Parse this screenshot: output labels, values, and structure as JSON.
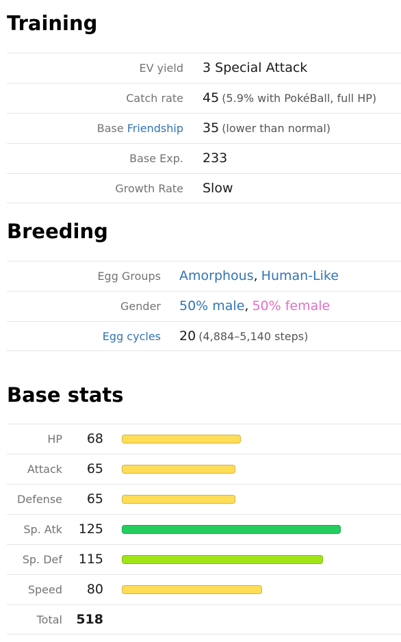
{
  "training": {
    "title": "Training",
    "rows": [
      {
        "label": "EV yield",
        "value": "3 Special Attack"
      },
      {
        "label": "Catch rate",
        "value": "45",
        "note": "(5.9% with PokéBall, full HP)"
      },
      {
        "label": "Base",
        "label_link": "Friendship",
        "value": "35",
        "note": "(lower than normal)"
      },
      {
        "label": "Base Exp.",
        "value": "233"
      },
      {
        "label": "Growth Rate",
        "value": "Slow"
      }
    ]
  },
  "breeding": {
    "title": "Breeding",
    "rows": [
      {
        "label": "Egg Groups",
        "items": [
          "Amorphous",
          "Human-Like"
        ],
        "item_colors": [
          "#3273b5",
          "#3273b5"
        ],
        "separator": ","
      },
      {
        "label": "Gender",
        "items": [
          "50% male",
          "50% female"
        ],
        "item_colors": [
          "#3273b5",
          "#e36fc4"
        ],
        "separator": ","
      },
      {
        "label_link": "Egg cycles",
        "value": "20",
        "note": "(4,884–5,140 steps)"
      }
    ]
  },
  "base_stats": {
    "title": "Base stats",
    "rows": [
      {
        "label": "HP",
        "value": 68,
        "color": "#ffdd57"
      },
      {
        "label": "Attack",
        "value": 65,
        "color": "#ffdd57"
      },
      {
        "label": "Defense",
        "value": 65,
        "color": "#ffdd57"
      },
      {
        "label": "Sp. Atk",
        "value": 125,
        "color": "#23cd5e"
      },
      {
        "label": "Sp. Def",
        "value": 115,
        "color": "#a0e515"
      },
      {
        "label": "Speed",
        "value": 80,
        "color": "#ffdd57"
      }
    ],
    "total": {
      "label": "Total",
      "value": 518
    }
  }
}
